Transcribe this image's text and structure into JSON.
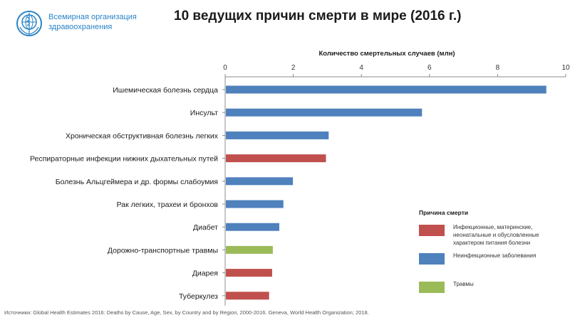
{
  "header": {
    "org_line1": "Всемирная организация",
    "org_line2": "здравоохранения",
    "logo_icon": "who-emblem-icon",
    "title": "10 ведущих причин смерти в мире (2016 г.)"
  },
  "chart_data": {
    "type": "bar",
    "orientation": "horizontal",
    "xlabel": "Количество смертельных случаев (млн)",
    "xaxis_position": "top",
    "xlim": [
      0,
      10
    ],
    "xticks": [
      0,
      2,
      4,
      6,
      8,
      10
    ],
    "grid": false,
    "categories": [
      "Ишемическая болезнь сердца",
      "Инсульт",
      "Хроническая обструктивная болезнь легких",
      "Респираторные инфекции нижних дыхательных путей",
      "Болезнь Альцгеймера и др. формы слабоумия",
      "Рак легких, трахеи и бронхов",
      "Диабет",
      "Дорожно-транспортные травмы",
      "Диарея",
      "Туберкулез"
    ],
    "values": [
      9.43,
      5.78,
      3.04,
      2.96,
      1.99,
      1.71,
      1.59,
      1.4,
      1.38,
      1.29
    ],
    "groups": [
      "noncommunicable",
      "noncommunicable",
      "noncommunicable",
      "communicable",
      "noncommunicable",
      "noncommunicable",
      "noncommunicable",
      "injuries",
      "communicable",
      "communicable"
    ],
    "legend": {
      "title": "Причина смерти",
      "placement": "bottom-right",
      "items": [
        {
          "key": "communicable",
          "label": "Инфекционные, материнские, неонатальные и обусловленные характером питания болезни",
          "color": "#c0504d"
        },
        {
          "key": "noncommunicable",
          "label": "Неинфекционные заболевания",
          "color": "#4f81bd"
        },
        {
          "key": "injuries",
          "label": "Травмы",
          "color": "#9bbb59"
        }
      ]
    }
  },
  "footer": {
    "source": "Источники: Global Health Estimates 2016: Deaths by Cause, Age, Sex, by Country and by Region, 2000-2016. Geneva, World Health Organization; 2018."
  }
}
